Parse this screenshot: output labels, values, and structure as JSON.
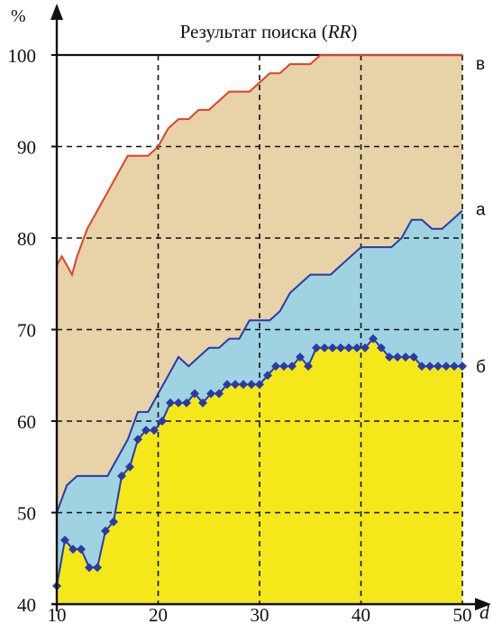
{
  "chart_data": {
    "type": "area",
    "title_main": "Результат поиска (",
    "title_italic": "RR",
    "title_close": ")",
    "ylabel": "%",
    "xlabel": "d",
    "xlim": [
      10,
      50
    ],
    "ylim": [
      40,
      100
    ],
    "xticks": [
      10,
      20,
      30,
      40,
      50
    ],
    "yticks": [
      40,
      50,
      60,
      70,
      80,
      90,
      100
    ],
    "grid": true,
    "colors": {
      "top_fill": "#e8d2a8",
      "middle_fill": "#9fd3e2",
      "bottom_fill": "#f4e81a",
      "line_v": "#e0402a",
      "line_a": "#2a3aa8",
      "line_b": "#2a3aa8",
      "marker_b": "#2a3aa8"
    },
    "series": [
      {
        "name": "в",
        "x": [
          10,
          10.5,
          11,
          11.5,
          12,
          13,
          14,
          15,
          16,
          17,
          18,
          19,
          20,
          21,
          22,
          23,
          24,
          25,
          26,
          27,
          28,
          29,
          30,
          31,
          32,
          33,
          34,
          35,
          36,
          37,
          38,
          39,
          40,
          41,
          42,
          43,
          44,
          45,
          46,
          47,
          48,
          49,
          50
        ],
        "values": [
          77,
          78,
          77,
          76,
          78,
          81,
          83,
          85,
          87,
          89,
          89,
          89,
          90,
          92,
          93,
          93,
          94,
          94,
          95,
          96,
          96,
          96,
          97,
          98,
          98,
          99,
          99,
          99,
          100,
          100,
          100,
          100,
          100,
          100,
          100,
          100,
          100,
          100,
          100,
          100,
          100,
          100,
          100
        ]
      },
      {
        "name": "а",
        "x": [
          10,
          11,
          12,
          13,
          14,
          15,
          16,
          17,
          18,
          19,
          20,
          21,
          22,
          23,
          24,
          25,
          26,
          27,
          28,
          29,
          30,
          31,
          32,
          33,
          34,
          35,
          36,
          37,
          38,
          39,
          40,
          41,
          42,
          43,
          44,
          45,
          46,
          47,
          48,
          49,
          50
        ],
        "values": [
          50,
          53,
          54,
          54,
          54,
          54,
          56,
          58,
          61,
          61,
          63,
          65,
          67,
          66,
          67,
          68,
          68,
          69,
          69,
          71,
          71,
          71,
          72,
          74,
          75,
          76,
          76,
          76,
          77,
          78,
          79,
          79,
          79,
          79,
          80,
          82,
          82,
          81,
          81,
          82,
          83
        ]
      },
      {
        "name": "б",
        "x": [
          10,
          10.8,
          11.6,
          12.4,
          13.2,
          14,
          14.8,
          15.6,
          16.4,
          17.2,
          18,
          18.8,
          19.6,
          20.4,
          21.2,
          22,
          22.8,
          23.6,
          24.4,
          25.2,
          26,
          26.8,
          27.6,
          28.4,
          29.2,
          30,
          30.8,
          31.6,
          32.4,
          33.2,
          34,
          34.8,
          35.6,
          36.4,
          37.2,
          38,
          38.8,
          39.6,
          40.4,
          41.2,
          42,
          42.8,
          43.6,
          44.4,
          45.2,
          46,
          46.8,
          47.6,
          48.4,
          49.2,
          50
        ],
        "values": [
          42,
          47,
          46,
          46,
          44,
          44,
          48,
          49,
          54,
          55,
          58,
          59,
          59,
          60,
          62,
          62,
          62,
          63,
          62,
          63,
          63,
          64,
          64,
          64,
          64,
          64,
          65,
          66,
          66,
          66,
          67,
          66,
          68,
          68,
          68,
          68,
          68,
          68,
          68,
          69,
          68,
          67,
          67,
          67,
          67,
          66,
          66,
          66,
          66,
          66,
          66
        ]
      }
    ]
  }
}
